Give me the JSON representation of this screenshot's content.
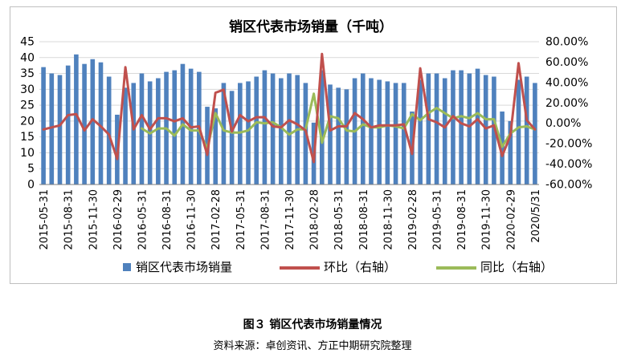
{
  "page": {
    "figure_caption": "图３ 销区代表市场销量情况",
    "source_note": "资料来源：卓创资讯、方正中期研究院整理"
  },
  "colors": {
    "bar": "#4f81bd",
    "line_hb": "#c0504d",
    "line_tb": "#9bbb59",
    "grid": "#d9d9d9",
    "axis": "#7f7f7f"
  },
  "chart_data": {
    "type": "bar",
    "title": "销区代表市场销量（千吨）",
    "xlabel": "",
    "ylabel": "",
    "ylim": [
      0,
      45
    ],
    "y2lim": [
      -0.6,
      0.8
    ],
    "y_ticks": [
      "0",
      "5",
      "10",
      "15",
      "20",
      "25",
      "30",
      "35",
      "40",
      "45"
    ],
    "y2_ticks": [
      "-60.00%",
      "-40.00%",
      "-20.00%",
      "0.00%",
      "20.00%",
      "40.00%",
      "60.00%",
      "80.00%"
    ],
    "x_tick_labels": [
      "2015-05-31",
      "2015-08-31",
      "2015-11-30",
      "2016-02-29",
      "2016-05-31",
      "2016-08-31",
      "2016-11-30",
      "2017-02-28",
      "2017-05-31",
      "2017-08-31",
      "2017-11-30",
      "2018-02-28",
      "2018-05-31",
      "2018-08-31",
      "2018-11-30",
      "2019-02-28",
      "2019-05-31",
      "2019-08-31",
      "2019-11-30",
      "2020-02-29",
      "2020/5/31"
    ],
    "legend_position": "bottom",
    "grid": true,
    "series": [
      {
        "name": "销区代表市场销量",
        "type": "bar",
        "axis": "left",
        "values": [
          37,
          35,
          34.5,
          37.5,
          41,
          38,
          39.5,
          38.5,
          34,
          22,
          30.5,
          32,
          35,
          32.5,
          33.5,
          35.5,
          36,
          38,
          36.5,
          35.5,
          24.5,
          24,
          32,
          29.5,
          32,
          32.5,
          34,
          36,
          35,
          33.5,
          35,
          34.5,
          32,
          19.5,
          36,
          31.5,
          30.5,
          30,
          33.5,
          35,
          33.5,
          33,
          32.5,
          32,
          32,
          23,
          33,
          35,
          35,
          33.5,
          36,
          36,
          35,
          36.5,
          34.5,
          34,
          23,
          20,
          33,
          34,
          32
        ]
      },
      {
        "name": "环比（右轴）",
        "type": "line",
        "axis": "right",
        "values": [
          -0.06,
          -0.04,
          -0.02,
          0.08,
          0.09,
          -0.07,
          0.04,
          -0.03,
          -0.11,
          -0.35,
          0.55,
          -0.06,
          0.08,
          -0.06,
          0.05,
          0.05,
          0.02,
          0.05,
          -0.04,
          -0.03,
          -0.31,
          0.3,
          0.33,
          -0.08,
          0.08,
          0.02,
          0.06,
          0.06,
          -0.03,
          -0.04,
          0.03,
          -0.01,
          -0.07,
          -0.38,
          0.68,
          -0.07,
          -0.03,
          -0.03,
          0.1,
          0.04,
          -0.04,
          -0.02,
          -0.02,
          -0.02,
          -0.01,
          -0.3,
          0.54,
          0.04,
          0.01,
          -0.04,
          0.07,
          0.0,
          -0.03,
          0.04,
          -0.05,
          -0.02,
          -0.32,
          -0.12,
          0.59,
          0.03,
          -0.06
        ]
      },
      {
        "name": "同比（右轴）",
        "type": "line",
        "axis": "right",
        "values": [
          null,
          null,
          null,
          null,
          null,
          null,
          null,
          null,
          null,
          null,
          null,
          null,
          -0.05,
          -0.1,
          -0.05,
          -0.05,
          -0.12,
          -0.01,
          -0.07,
          -0.07,
          -0.25,
          0.1,
          -0.07,
          -0.09,
          -0.09,
          -0.07,
          0.01,
          0.0,
          0.01,
          -0.04,
          -0.11,
          -0.06,
          -0.06,
          0.29,
          -0.19,
          0.07,
          0.05,
          -0.07,
          -0.08,
          -0.01,
          -0.04,
          -0.04,
          -0.02,
          -0.03,
          -0.05,
          0.09,
          0.03,
          0.1,
          0.15,
          0.1,
          0.05,
          0.07,
          0.05,
          0.1,
          0.04,
          0.04,
          -0.23,
          -0.1,
          -0.04,
          -0.03,
          -0.06
        ]
      }
    ]
  }
}
